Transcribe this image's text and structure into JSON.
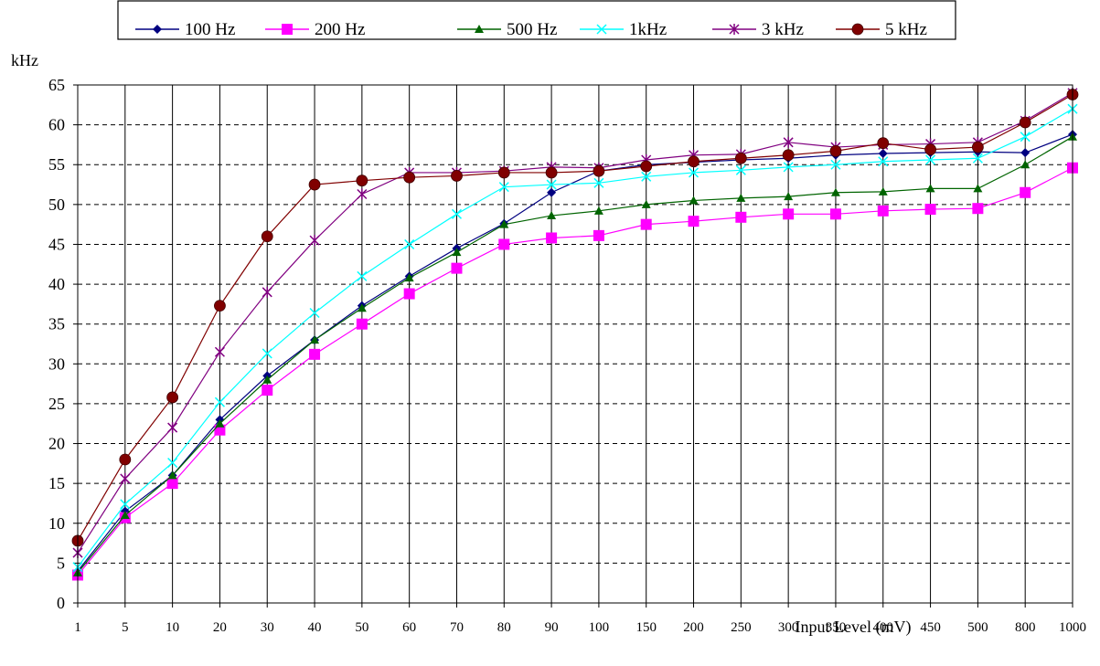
{
  "chart_data": {
    "type": "line",
    "title": "",
    "xlabel": "Input Level (mV)",
    "ylabel": "kHz",
    "x": [
      "1",
      "5",
      "10",
      "20",
      "30",
      "40",
      "50",
      "60",
      "70",
      "80",
      "90",
      "100",
      "150",
      "200",
      "250",
      "300",
      "350",
      "400",
      "450",
      "500",
      "800",
      "1000"
    ],
    "ylim": [
      0,
      65
    ],
    "yticks": [
      0,
      5,
      10,
      15,
      20,
      25,
      30,
      35,
      40,
      45,
      50,
      55,
      60,
      65
    ],
    "grid": {
      "x": "solid",
      "y": "dashed"
    },
    "legend_position": "top",
    "series": [
      {
        "name": "100 Hz",
        "color": "#000080",
        "marker": "diamond",
        "values": [
          4.0,
          11.5,
          16.0,
          23.0,
          28.5,
          33.0,
          37.3,
          41.0,
          44.5,
          47.6,
          51.5,
          54.2,
          55.0,
          55.3,
          55.6,
          55.8,
          56.2,
          56.4,
          56.5,
          56.6,
          56.5,
          58.8
        ]
      },
      {
        "name": "200 Hz",
        "color": "#ff00ff",
        "marker": "square",
        "values": [
          3.5,
          10.7,
          15.0,
          21.7,
          26.7,
          31.2,
          35.0,
          38.8,
          42.0,
          45.0,
          45.8,
          46.1,
          47.5,
          47.9,
          48.4,
          48.8,
          48.8,
          49.2,
          49.4,
          49.5,
          51.5,
          54.6
        ]
      },
      {
        "name": "500 Hz",
        "color": "#006400",
        "marker": "triangle",
        "values": [
          3.8,
          11.0,
          16.0,
          22.5,
          28.0,
          33.0,
          37.0,
          40.8,
          44.0,
          47.5,
          48.6,
          49.2,
          50.0,
          50.5,
          50.8,
          51.0,
          51.5,
          51.6,
          52.0,
          52.0,
          55.0,
          58.5
        ]
      },
      {
        "name": "1kHz",
        "color": "#00ffff",
        "marker": "x",
        "values": [
          4.5,
          12.4,
          17.6,
          25.2,
          31.3,
          36.4,
          41.0,
          45.0,
          48.8,
          52.2,
          52.5,
          52.7,
          53.5,
          54.0,
          54.3,
          54.7,
          55.0,
          55.4,
          55.6,
          55.8,
          58.5,
          62.0
        ]
      },
      {
        "name": "3 kHz",
        "color": "#800080",
        "marker": "star",
        "values": [
          6.3,
          15.6,
          22.0,
          31.5,
          39.0,
          45.5,
          51.3,
          54.0,
          54.0,
          54.2,
          54.7,
          54.6,
          55.6,
          56.2,
          56.3,
          57.8,
          57.2,
          57.5,
          57.6,
          57.8,
          60.5,
          64.0
        ]
      },
      {
        "name": "5 kHz",
        "color": "#800000",
        "marker": "circle",
        "values": [
          7.8,
          18.0,
          25.8,
          37.3,
          46.0,
          52.5,
          53.0,
          53.4,
          53.6,
          54.0,
          54.0,
          54.2,
          54.8,
          55.4,
          55.8,
          56.2,
          56.7,
          57.7,
          56.9,
          57.2,
          60.3,
          63.8
        ]
      }
    ]
  }
}
